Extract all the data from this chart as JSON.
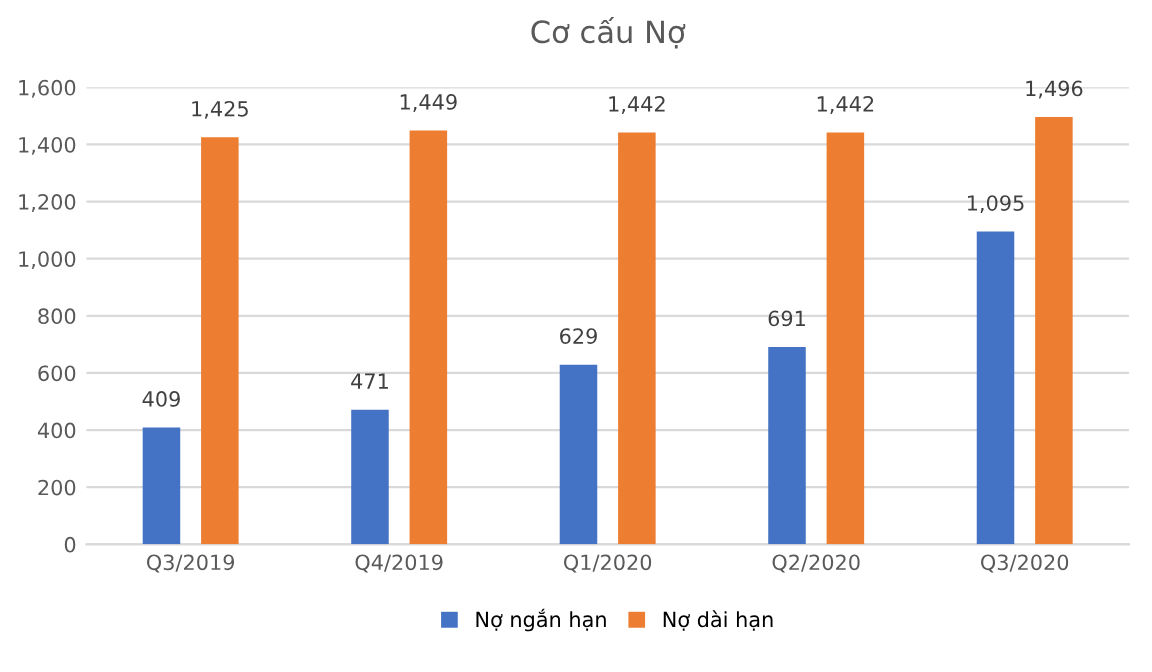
{
  "chart_data": {
    "type": "bar",
    "title": "Cơ cấu Nợ",
    "categories": [
      "Q3/2019",
      "Q4/2019",
      "Q1/2020",
      "Q2/2020",
      "Q3/2020"
    ],
    "series": [
      {
        "name": "Nợ ngắn hạn",
        "color": "#4472c4",
        "values": [
          409,
          471,
          629,
          691,
          1095
        ],
        "value_labels": [
          "409",
          "471",
          "629",
          "691",
          "1,095"
        ]
      },
      {
        "name": "Nợ dài hạn",
        "color": "#ed7d31",
        "values": [
          1425,
          1449,
          1442,
          1442,
          1496
        ],
        "value_labels": [
          "1,425",
          "1,449",
          "1,442",
          "1,442",
          "1,496"
        ]
      }
    ],
    "ylim": [
      0,
      1600
    ],
    "yticks": [
      0,
      200,
      400,
      600,
      800,
      {
        "value": 1000,
        "label": "1,000"
      },
      {
        "value": 1200,
        "label": "1,200"
      },
      {
        "value": 1400,
        "label": "1,400"
      },
      {
        "value": 1600,
        "label": "1,600"
      }
    ],
    "grid": "y",
    "legend": "bottom"
  }
}
